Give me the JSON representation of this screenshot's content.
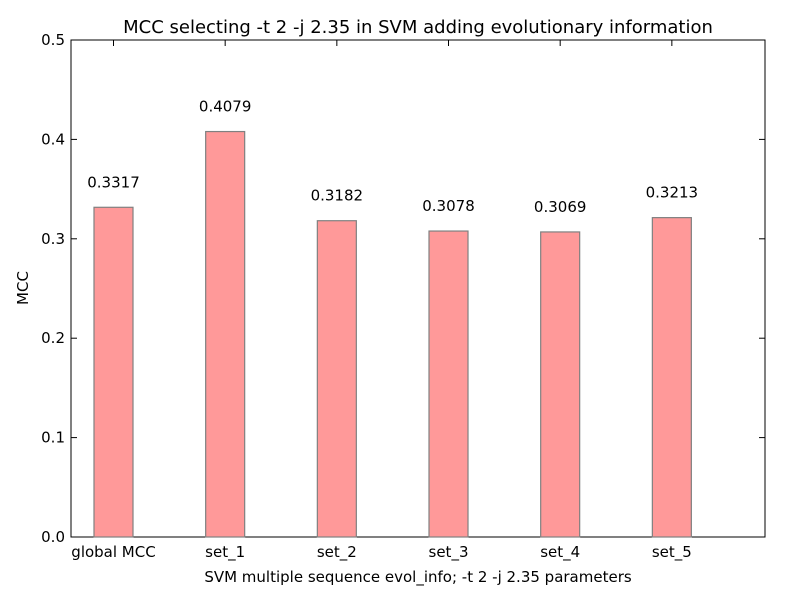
{
  "chart_data": {
    "type": "bar",
    "title": "MCC selecting -t 2 -j 2.35 in SVM adding evolutionary information",
    "xlabel": "SVM multiple sequence evol_info; -t 2 -j 2.35 parameters",
    "ylabel": "MCC",
    "categories": [
      "global MCC",
      "set_1",
      "set_2",
      "set_3",
      "set_4",
      "set_5"
    ],
    "values": [
      0.3317,
      0.4079,
      0.3182,
      0.3078,
      0.3069,
      0.3213
    ],
    "value_labels": [
      "0.3317",
      "0.4079",
      "0.3182",
      "0.3078",
      "0.3069",
      "0.3213"
    ],
    "ylim": [
      0,
      0.5
    ],
    "yticks": [
      "0.0",
      "0.1",
      "0.2",
      "0.3",
      "0.4",
      "0.5"
    ],
    "grid": false,
    "bar_color": "#ff9999",
    "bar_edge_color": "#808080"
  }
}
